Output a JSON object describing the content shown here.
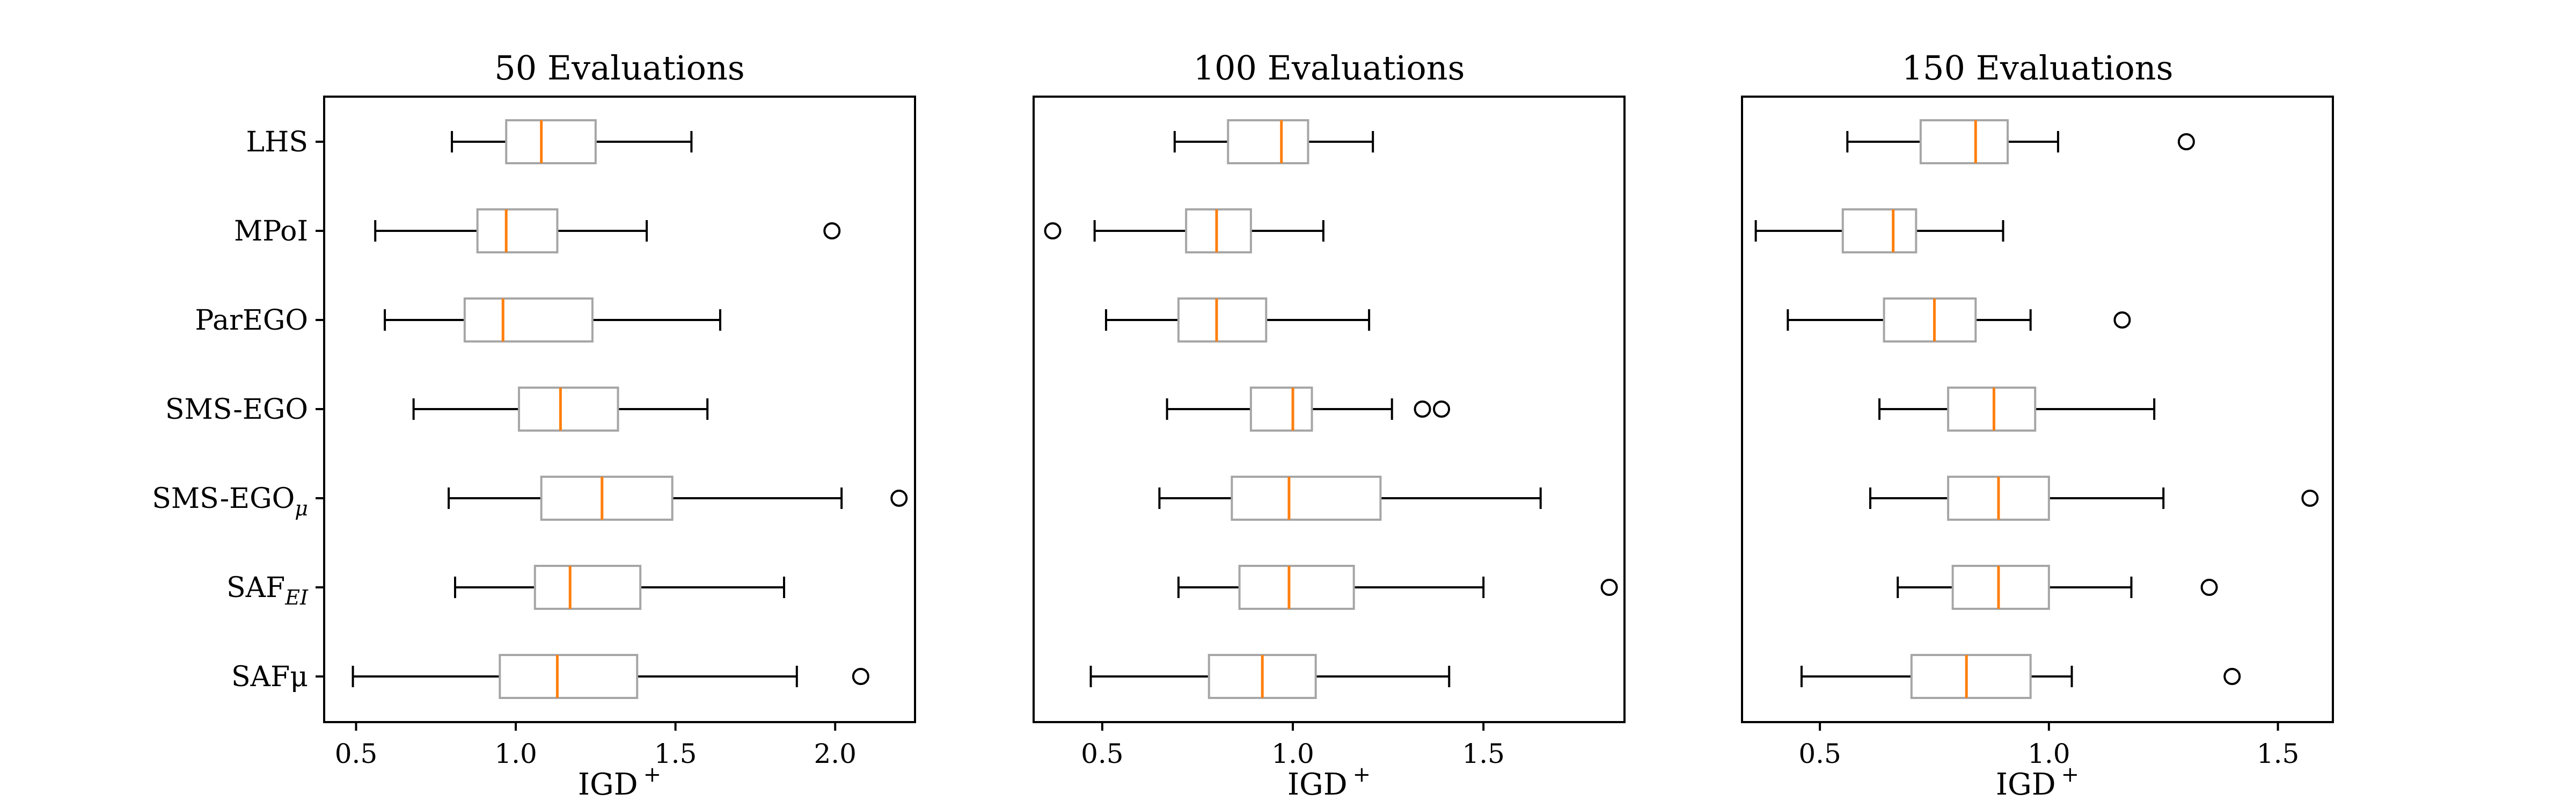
{
  "chart_data": [
    {
      "type": "boxplot",
      "title": "50 Evaluations",
      "xlabel": "IGD",
      "xlabel_superscript": "+",
      "xlim": [
        0.4,
        2.25
      ],
      "xticks": [
        "0.5",
        "1.0",
        "1.5",
        "2.0"
      ],
      "categories": [
        {
          "main": "LHS",
          "sub": ""
        },
        {
          "main": "MPoI",
          "sub": ""
        },
        {
          "main": "ParEGO",
          "sub": ""
        },
        {
          "main": "SMS-EGO",
          "sub": ""
        },
        {
          "main": "SMS-EGO",
          "sub": "μ"
        },
        {
          "main": "SAF",
          "sub": "EI"
        },
        {
          "main": "SAFμ",
          "sub": ""
        }
      ],
      "boxes": [
        {
          "whislo": 0.8,
          "q1": 0.97,
          "med": 1.08,
          "q3": 1.25,
          "whishi": 1.55,
          "fliers": []
        },
        {
          "whislo": 0.56,
          "q1": 0.88,
          "med": 0.97,
          "q3": 1.13,
          "whishi": 1.41,
          "fliers": [
            1.99
          ]
        },
        {
          "whislo": 0.59,
          "q1": 0.84,
          "med": 0.96,
          "q3": 1.24,
          "whishi": 1.64,
          "fliers": []
        },
        {
          "whislo": 0.68,
          "q1": 1.01,
          "med": 1.14,
          "q3": 1.32,
          "whishi": 1.6,
          "fliers": []
        },
        {
          "whislo": 0.79,
          "q1": 1.08,
          "med": 1.27,
          "q3": 1.49,
          "whishi": 2.02,
          "fliers": [
            2.2
          ]
        },
        {
          "whislo": 0.81,
          "q1": 1.06,
          "med": 1.17,
          "q3": 1.39,
          "whishi": 1.84,
          "fliers": []
        },
        {
          "whislo": 0.49,
          "q1": 0.95,
          "med": 1.13,
          "q3": 1.38,
          "whishi": 1.88,
          "fliers": [
            2.08
          ]
        }
      ]
    },
    {
      "type": "boxplot",
      "title": "100 Evaluations",
      "xlabel": "IGD",
      "xlabel_superscript": "+",
      "xlim": [
        0.32,
        1.87
      ],
      "xticks": [
        "0.5",
        "1.0",
        "1.5"
      ],
      "categories": [],
      "boxes": [
        {
          "whislo": 0.69,
          "q1": 0.83,
          "med": 0.97,
          "q3": 1.04,
          "whishi": 1.21,
          "fliers": []
        },
        {
          "whislo": 0.48,
          "q1": 0.72,
          "med": 0.8,
          "q3": 0.89,
          "whishi": 1.08,
          "fliers": [
            0.37
          ]
        },
        {
          "whislo": 0.51,
          "q1": 0.7,
          "med": 0.8,
          "q3": 0.93,
          "whishi": 1.2,
          "fliers": []
        },
        {
          "whislo": 0.67,
          "q1": 0.89,
          "med": 1.0,
          "q3": 1.05,
          "whishi": 1.26,
          "fliers": [
            1.34,
            1.39
          ]
        },
        {
          "whislo": 0.65,
          "q1": 0.84,
          "med": 0.99,
          "q3": 1.23,
          "whishi": 1.65,
          "fliers": []
        },
        {
          "whislo": 0.7,
          "q1": 0.86,
          "med": 0.99,
          "q3": 1.16,
          "whishi": 1.5,
          "fliers": [
            1.83
          ]
        },
        {
          "whislo": 0.47,
          "q1": 0.78,
          "med": 0.92,
          "q3": 1.06,
          "whishi": 1.41,
          "fliers": []
        }
      ]
    },
    {
      "type": "boxplot",
      "title": "150 Evaluations",
      "xlabel": "IGD",
      "xlabel_superscript": "+",
      "xlim": [
        0.33,
        1.62
      ],
      "xticks": [
        "0.5",
        "1.0",
        "1.5"
      ],
      "categories": [],
      "boxes": [
        {
          "whislo": 0.56,
          "q1": 0.72,
          "med": 0.84,
          "q3": 0.91,
          "whishi": 1.02,
          "fliers": [
            1.3
          ]
        },
        {
          "whislo": 0.36,
          "q1": 0.55,
          "med": 0.66,
          "q3": 0.71,
          "whishi": 0.9,
          "fliers": []
        },
        {
          "whislo": 0.43,
          "q1": 0.64,
          "med": 0.75,
          "q3": 0.84,
          "whishi": 0.96,
          "fliers": [
            1.16
          ]
        },
        {
          "whislo": 0.63,
          "q1": 0.78,
          "med": 0.88,
          "q3": 0.97,
          "whishi": 1.23,
          "fliers": []
        },
        {
          "whislo": 0.61,
          "q1": 0.78,
          "med": 0.89,
          "q3": 1.0,
          "whishi": 1.25,
          "fliers": [
            1.57
          ]
        },
        {
          "whislo": 0.67,
          "q1": 0.79,
          "med": 0.89,
          "q3": 1.0,
          "whishi": 1.18,
          "fliers": [
            1.35
          ]
        },
        {
          "whislo": 0.46,
          "q1": 0.7,
          "med": 0.82,
          "q3": 0.96,
          "whishi": 1.05,
          "fliers": [
            1.4
          ]
        }
      ]
    }
  ],
  "colors": {
    "box": "#a6a6a6",
    "median": "#ff7f0e",
    "whisker": "#000000",
    "flier": "#000000"
  }
}
